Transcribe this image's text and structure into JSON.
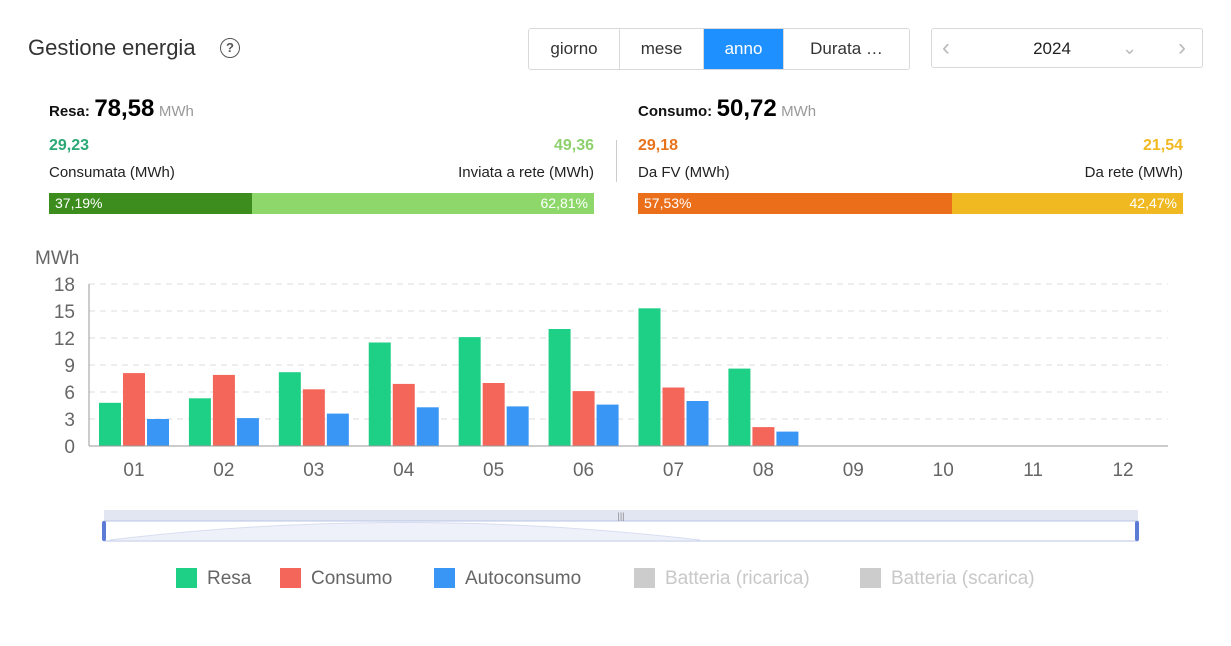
{
  "header": {
    "title": "Gestione energia",
    "help_icon": "question-circle-icon",
    "tabs": [
      {
        "label": "giorno",
        "active": false
      },
      {
        "label": "mese",
        "active": false
      },
      {
        "label": "anno",
        "active": true
      },
      {
        "label": "Durata …",
        "active": false
      }
    ],
    "year": "2024"
  },
  "summary": {
    "resa": {
      "label": "Resa:",
      "value": "78,58",
      "unit": "MWh",
      "left_value": "29,23",
      "left_label": "Consumata (MWh)",
      "right_value": "49,36",
      "right_label": "Inviata a rete (MWh)",
      "left_pct": "37,19%",
      "right_pct": "62,81%",
      "left_share": 0.3719,
      "colors": {
        "left_num": "#2aa876",
        "right_num": "#8ed16c",
        "left_bar": "#3c8c1e",
        "right_bar": "#8ed86b"
      }
    },
    "consumo": {
      "label": "Consumo:",
      "value": "50,72",
      "unit": "MWh",
      "left_value": "29,18",
      "left_label": "Da FV (MWh)",
      "right_value": "21,54",
      "right_label": "Da rete (MWh)",
      "left_pct": "57,53%",
      "right_pct": "42,47%",
      "left_share": 0.5753,
      "colors": {
        "left_num": "#e8731c",
        "right_num": "#f0b921",
        "left_bar": "#eb6f1b",
        "right_bar": "#f0b921"
      }
    }
  },
  "chart_data": {
    "type": "bar",
    "ylabel": "MWh",
    "categories": [
      "01",
      "02",
      "03",
      "04",
      "05",
      "06",
      "07",
      "08",
      "09",
      "10",
      "11",
      "12"
    ],
    "ylim": [
      0,
      18
    ],
    "yticks": [
      0,
      3,
      6,
      9,
      12,
      15,
      18
    ],
    "grid": true,
    "series": [
      {
        "name": "Resa",
        "color": "#1ecf86",
        "values": [
          4.8,
          5.3,
          8.2,
          11.5,
          12.1,
          13.0,
          15.3,
          8.6,
          null,
          null,
          null,
          null
        ]
      },
      {
        "name": "Consumo",
        "color": "#f4665a",
        "values": [
          8.1,
          7.9,
          6.3,
          6.9,
          7.0,
          6.1,
          6.5,
          2.1,
          null,
          null,
          null,
          null
        ]
      },
      {
        "name": "Autoconsumo",
        "color": "#3a96f5",
        "values": [
          3.0,
          3.1,
          3.6,
          4.3,
          4.4,
          4.6,
          5.0,
          1.6,
          null,
          null,
          null,
          null
        ]
      }
    ],
    "legend": [
      {
        "name": "Resa",
        "color": "#1ecf86",
        "enabled": true
      },
      {
        "name": "Consumo",
        "color": "#f4665a",
        "enabled": true
      },
      {
        "name": "Autoconsumo",
        "color": "#3a96f5",
        "enabled": true
      },
      {
        "name": "Batteria (ricarica)",
        "color": "#cccccc",
        "enabled": false
      },
      {
        "name": "Batteria (scarica)",
        "color": "#cccccc",
        "enabled": false
      }
    ],
    "legend_position": "bottom"
  }
}
